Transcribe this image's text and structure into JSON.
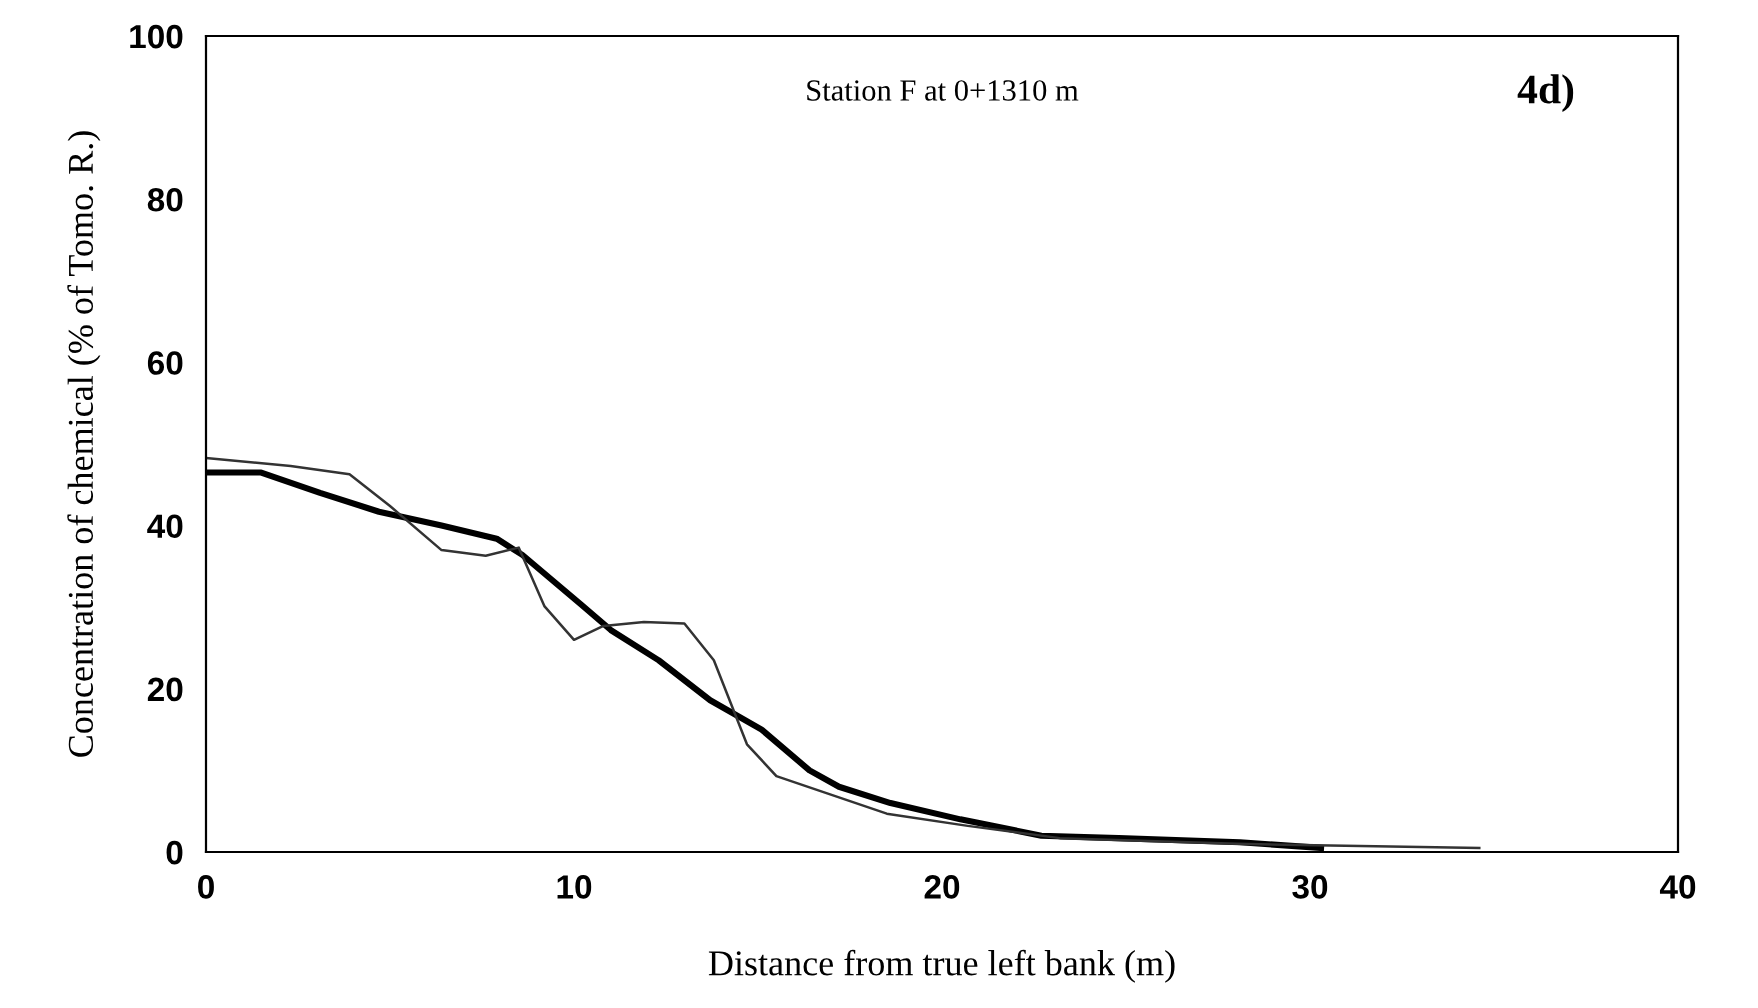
{
  "chart_data": {
    "type": "line",
    "title": "Station F at 0+1310 m",
    "xlabel": "Distance from true left bank (m)",
    "ylabel": "Concentration of chemical (% of Tomo. R.)",
    "annotations": [
      "4d)"
    ],
    "series": [
      {
        "color": "#000000",
        "x": [
          0,
          1.5,
          3.1,
          4.7,
          6.4,
          7.9,
          8.6,
          10.2,
          11,
          12.3,
          13.7,
          15.1,
          16.4,
          17.2,
          18.6,
          20.5,
          22.7,
          24.8,
          28.1,
          30.3
        ],
        "values": [
          46.5,
          46.5,
          44,
          41.7,
          40,
          38.4,
          36.4,
          30.3,
          27.2,
          23.5,
          18.6,
          15,
          10,
          8,
          6,
          4,
          2,
          1.7,
          1.2,
          0.5
        ]
      },
      {
        "color": "#333333",
        "x": [
          0,
          2.3,
          3.9,
          5,
          6.4,
          7.6,
          8.5,
          9.2,
          10,
          10.8,
          11.9,
          13,
          13.8,
          14.7,
          15.5,
          18.5,
          20.7,
          23.2,
          28,
          34.6
        ],
        "values": [
          48.3,
          47.3,
          46.3,
          42.4,
          37,
          36.3,
          37.3,
          30.1,
          26,
          27.7,
          28.2,
          28,
          23.5,
          13.2,
          9.3,
          4.7,
          3.2,
          1.7,
          1,
          0.5
        ]
      }
    ],
    "xlim": [
      0,
      40
    ],
    "ylim": [
      0,
      100
    ],
    "xticks": [
      0,
      10,
      20,
      30,
      40
    ],
    "yticks": [
      0,
      20,
      40,
      60,
      80,
      100
    ],
    "grid": false,
    "legend": false,
    "marker": "none",
    "line_style": "solid"
  }
}
